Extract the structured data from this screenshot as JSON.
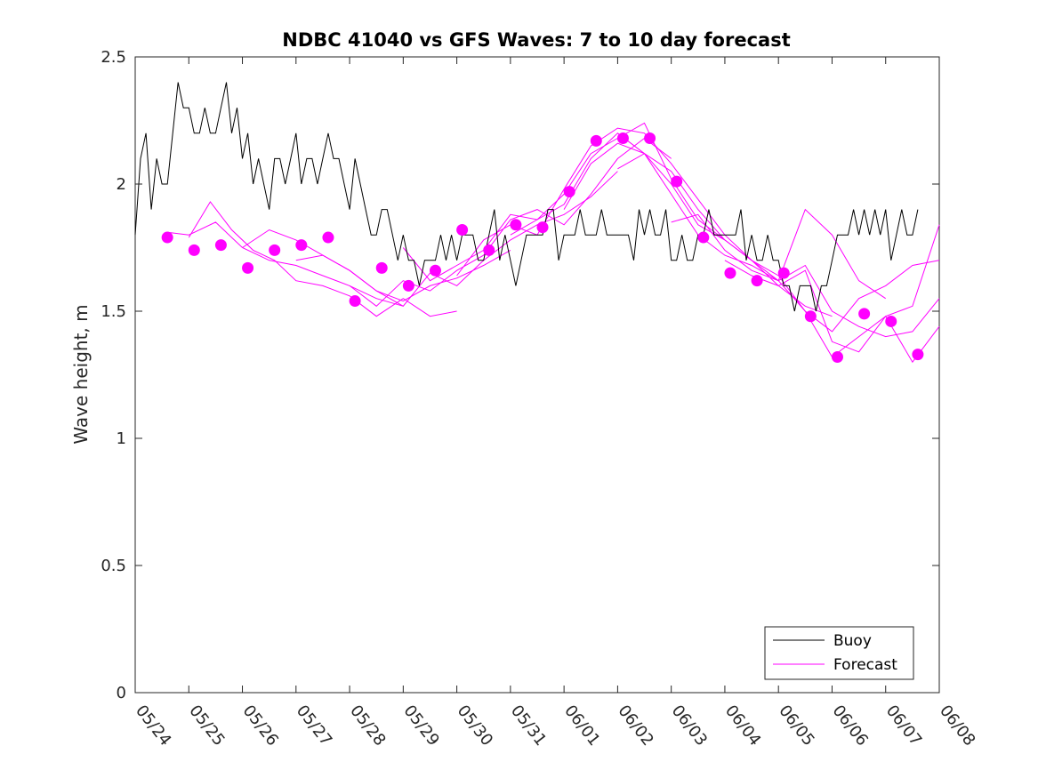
{
  "chart_data": {
    "type": "line",
    "title": "NDBC 41040 vs GFS Waves: 7 to 10 day forecast",
    "xlabel": "",
    "ylabel": "Wave height, m",
    "x_range_days": [
      0,
      15
    ],
    "ylim": [
      0,
      2.5
    ],
    "x_ticks": [
      "05/24",
      "05/25",
      "05/26",
      "05/27",
      "05/28",
      "05/29",
      "05/30",
      "05/31",
      "06/01",
      "06/02",
      "06/03",
      "06/04",
      "06/05",
      "06/06",
      "06/07",
      "06/08"
    ],
    "y_ticks": [
      0,
      0.5,
      1,
      1.5,
      2,
      2.5
    ],
    "y_tick_labels": [
      "0",
      "0.5",
      "1",
      "1.5",
      "2",
      "2.5"
    ],
    "grid": false,
    "legend_placement": "bottom-right",
    "colors": {
      "buoy": "#000000",
      "forecast": "#ff00ff"
    },
    "series": [
      {
        "name": "Buoy",
        "style": "line",
        "x": [
          0.0,
          0.1,
          0.2,
          0.3,
          0.4,
          0.5,
          0.6,
          0.7,
          0.8,
          0.9,
          1.0,
          1.1,
          1.2,
          1.3,
          1.4,
          1.5,
          1.6,
          1.7,
          1.8,
          1.9,
          2.0,
          2.1,
          2.2,
          2.3,
          2.4,
          2.5,
          2.6,
          2.7,
          2.8,
          2.9,
          3.0,
          3.1,
          3.2,
          3.3,
          3.4,
          3.5,
          3.6,
          3.7,
          3.8,
          3.9,
          4.0,
          4.1,
          4.2,
          4.3,
          4.4,
          4.5,
          4.6,
          4.7,
          4.8,
          4.9,
          5.0,
          5.1,
          5.2,
          5.3,
          5.4,
          5.5,
          5.6,
          5.7,
          5.8,
          5.9,
          6.0,
          6.1,
          6.2,
          6.3,
          6.4,
          6.5,
          6.6,
          6.7,
          6.8,
          6.9,
          7.0,
          7.1,
          7.2,
          7.3,
          7.4,
          7.5,
          7.6,
          7.7,
          7.8,
          7.9,
          8.0,
          8.1,
          8.2,
          8.3,
          8.4,
          8.5,
          8.6,
          8.7,
          8.8,
          8.9,
          9.0,
          9.1,
          9.2,
          9.3,
          9.4,
          9.5,
          9.6,
          9.7,
          9.8,
          9.9,
          10.0,
          10.1,
          10.2,
          10.3,
          10.4,
          10.5,
          10.6,
          10.7,
          10.8,
          10.9,
          11.0,
          11.1,
          11.2,
          11.3,
          11.4,
          11.5,
          11.6,
          11.7,
          11.8,
          11.9,
          12.0,
          12.1,
          12.2,
          12.3,
          12.4,
          12.5,
          12.6,
          12.7,
          12.8,
          12.9,
          13.0,
          13.1,
          13.2,
          13.3,
          13.4,
          13.5,
          13.6,
          13.7,
          13.8,
          13.9,
          14.0,
          14.1,
          14.2,
          14.3,
          14.4,
          14.5,
          14.6
        ],
        "values": [
          1.8,
          2.1,
          2.2,
          1.9,
          2.1,
          2.0,
          2.0,
          2.2,
          2.4,
          2.3,
          2.3,
          2.2,
          2.2,
          2.3,
          2.2,
          2.2,
          2.3,
          2.4,
          2.2,
          2.3,
          2.1,
          2.2,
          2.0,
          2.1,
          2.0,
          1.9,
          2.1,
          2.1,
          2.0,
          2.1,
          2.2,
          2.0,
          2.1,
          2.1,
          2.0,
          2.1,
          2.2,
          2.1,
          2.1,
          2.0,
          1.9,
          2.1,
          2.0,
          1.9,
          1.8,
          1.8,
          1.9,
          1.9,
          1.8,
          1.7,
          1.8,
          1.7,
          1.7,
          1.6,
          1.7,
          1.7,
          1.7,
          1.8,
          1.7,
          1.8,
          1.7,
          1.8,
          1.8,
          1.8,
          1.7,
          1.7,
          1.8,
          1.9,
          1.7,
          1.8,
          1.7,
          1.6,
          1.7,
          1.8,
          1.8,
          1.8,
          1.8,
          1.9,
          1.9,
          1.7,
          1.8,
          1.8,
          1.8,
          1.9,
          1.8,
          1.8,
          1.8,
          1.9,
          1.8,
          1.8,
          1.8,
          1.8,
          1.8,
          1.7,
          1.9,
          1.8,
          1.9,
          1.8,
          1.8,
          1.9,
          1.7,
          1.7,
          1.8,
          1.7,
          1.7,
          1.8,
          1.8,
          1.9,
          1.8,
          1.8,
          1.8,
          1.8,
          1.8,
          1.9,
          1.7,
          1.8,
          1.7,
          1.7,
          1.8,
          1.7,
          1.7,
          1.6,
          1.6,
          1.5,
          1.6,
          1.6,
          1.6,
          1.5,
          1.6,
          1.6,
          1.7,
          1.8,
          1.8,
          1.8,
          1.9,
          1.8,
          1.9,
          1.8,
          1.9,
          1.8,
          1.9,
          1.7,
          1.8,
          1.9,
          1.8,
          1.8,
          1.9
        ]
      },
      {
        "name": "Forecast",
        "style": "lines",
        "tracks": [
          {
            "x": [
              0.6,
              1.0,
              1.5,
              2.0,
              2.5,
              3.0,
              3.5,
              4.0,
              4.5,
              5.0
            ],
            "values": [
              1.81,
              1.8,
              1.85,
              1.75,
              1.7,
              1.68,
              1.64,
              1.6,
              1.55,
              1.52
            ]
          },
          {
            "x": [
              1.0,
              1.4,
              1.8,
              2.2,
              2.6,
              3.0,
              3.5,
              4.0,
              4.5,
              5.0,
              5.5,
              6.0
            ],
            "values": [
              1.79,
              1.93,
              1.82,
              1.74,
              1.7,
              1.62,
              1.6,
              1.56,
              1.48,
              1.55,
              1.48,
              1.5
            ]
          },
          {
            "x": [
              2.0,
              2.5,
              3.0,
              3.5,
              4.0,
              4.5,
              5.0,
              5.5,
              6.0,
              6.5,
              7.0
            ],
            "values": [
              1.75,
              1.82,
              1.78,
              1.72,
              1.66,
              1.58,
              1.54,
              1.6,
              1.63,
              1.68,
              1.74
            ]
          },
          {
            "x": [
              3.0,
              3.5,
              4.0,
              4.5,
              5.0,
              5.5,
              6.0,
              6.5,
              7.0,
              7.5,
              8.0,
              8.5,
              9.0
            ],
            "values": [
              1.7,
              1.72,
              1.66,
              1.58,
              1.52,
              1.65,
              1.6,
              1.7,
              1.78,
              1.84,
              1.88,
              1.95,
              2.05
            ]
          },
          {
            "x": [
              4.0,
              4.5,
              5.0,
              5.5,
              6.0,
              6.5,
              7.0,
              7.5,
              8.0,
              8.5,
              9.0,
              9.5,
              10.0
            ],
            "values": [
              1.6,
              1.52,
              1.62,
              1.58,
              1.66,
              1.72,
              1.86,
              1.9,
              1.84,
              1.96,
              2.1,
              2.18,
              2.1
            ]
          },
          {
            "x": [
              5.0,
              5.5,
              6.0,
              6.5,
              7.0,
              7.5,
              8.0,
              8.5,
              9.0,
              9.5,
              10.0,
              10.5,
              11.0
            ],
            "values": [
              1.75,
              1.62,
              1.68,
              1.74,
              1.88,
              1.86,
              1.92,
              2.1,
              2.2,
              2.12,
              2.05,
              1.9,
              1.78
            ]
          },
          {
            "x": [
              6.0,
              6.5,
              7.0,
              7.5,
              8.0,
              8.5,
              9.0,
              9.5,
              10.0,
              10.5,
              11.0,
              11.5,
              12.0
            ],
            "values": [
              1.64,
              1.78,
              1.84,
              1.8,
              1.98,
              2.15,
              2.22,
              2.2,
              2.08,
              1.94,
              1.8,
              1.7,
              1.62
            ]
          },
          {
            "x": [
              7.0,
              7.5,
              8.0,
              8.5,
              9.0,
              9.5,
              10.0,
              10.5,
              11.0,
              11.5,
              12.0,
              12.5,
              13.0
            ],
            "values": [
              1.8,
              1.86,
              1.96,
              2.12,
              2.18,
              2.24,
              2.02,
              1.86,
              1.78,
              1.7,
              1.6,
              1.52,
              1.48
            ]
          },
          {
            "x": [
              8.0,
              8.5,
              9.0,
              9.5,
              10.0,
              10.5,
              11.0,
              11.5,
              12.0,
              12.5,
              13.0,
              13.5,
              14.0
            ],
            "values": [
              1.9,
              2.08,
              2.16,
              2.12,
              1.96,
              1.8,
              1.72,
              1.68,
              1.62,
              1.9,
              1.8,
              1.62,
              1.55
            ]
          },
          {
            "x": [
              9.0,
              9.5,
              10.0,
              10.5,
              11.0,
              11.5,
              12.0,
              12.5,
              13.0,
              13.5,
              14.0,
              14.5,
              15.0
            ],
            "values": [
              2.06,
              2.12,
              2.0,
              1.84,
              1.78,
              1.7,
              1.64,
              1.5,
              1.42,
              1.55,
              1.6,
              1.68,
              1.7
            ]
          },
          {
            "x": [
              10.0,
              10.5,
              11.0,
              11.5,
              12.0,
              12.5,
              13.0,
              13.5,
              14.0,
              14.5,
              15.0
            ],
            "values": [
              1.85,
              1.88,
              1.74,
              1.66,
              1.62,
              1.68,
              1.5,
              1.44,
              1.4,
              1.42,
              1.55
            ]
          },
          {
            "x": [
              11.0,
              11.5,
              12.0,
              12.5,
              13.0,
              13.5,
              14.0,
              14.5,
              15.0
            ],
            "values": [
              1.7,
              1.64,
              1.6,
              1.66,
              1.38,
              1.34,
              1.48,
              1.52,
              1.84
            ]
          },
          {
            "x": [
              12.0,
              12.5,
              13.0,
              13.5,
              14.0,
              14.5,
              15.0
            ],
            "values": [
              1.62,
              1.5,
              1.32,
              1.4,
              1.48,
              1.3,
              1.44
            ]
          }
        ]
      },
      {
        "name": "",
        "style": "markers",
        "x": [
          0.6,
          1.1,
          1.6,
          2.1,
          2.6,
          3.1,
          3.6,
          4.1,
          4.6,
          5.1,
          5.6,
          6.1,
          6.6,
          7.1,
          7.6,
          8.1,
          8.6,
          9.1,
          9.6,
          10.1,
          10.6,
          11.1,
          11.6,
          12.1,
          12.6,
          13.1,
          13.6,
          14.1,
          14.6
        ],
        "values": [
          1.79,
          1.74,
          1.76,
          1.67,
          1.74,
          1.76,
          1.79,
          1.54,
          1.67,
          1.6,
          1.66,
          1.82,
          1.74,
          1.84,
          1.83,
          1.97,
          2.17,
          2.18,
          2.18,
          2.01,
          1.79,
          1.65,
          1.62,
          1.65,
          1.48,
          1.32,
          1.49,
          1.46,
          1.33
        ]
      }
    ]
  }
}
